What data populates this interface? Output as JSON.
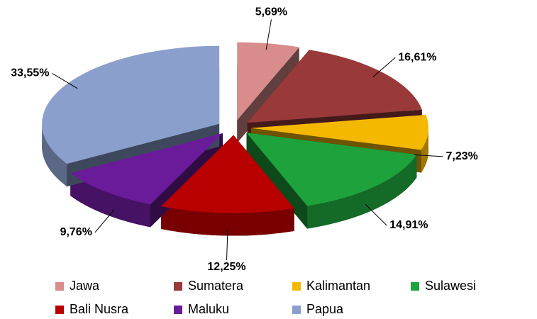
{
  "chart_data": {
    "type": "pie3d",
    "categories": [
      "Jawa",
      "Sumatera",
      "Kalimantan",
      "Sulawesi",
      "Bali Nusra",
      "Maluku",
      "Papua"
    ],
    "values": [
      5.69,
      16.61,
      7.23,
      14.91,
      12.25,
      9.76,
      33.55
    ],
    "value_labels": [
      "5,69%",
      "16,61%",
      "7,23%",
      "14,91%",
      "12,25%",
      "9,76%",
      "33,55%"
    ],
    "colors": [
      "#d98c8c",
      "#993939",
      "#f5b800",
      "#1ea33c",
      "#b80000",
      "#6a1b9a",
      "#8a9fcc"
    ],
    "legend": "bottom"
  }
}
